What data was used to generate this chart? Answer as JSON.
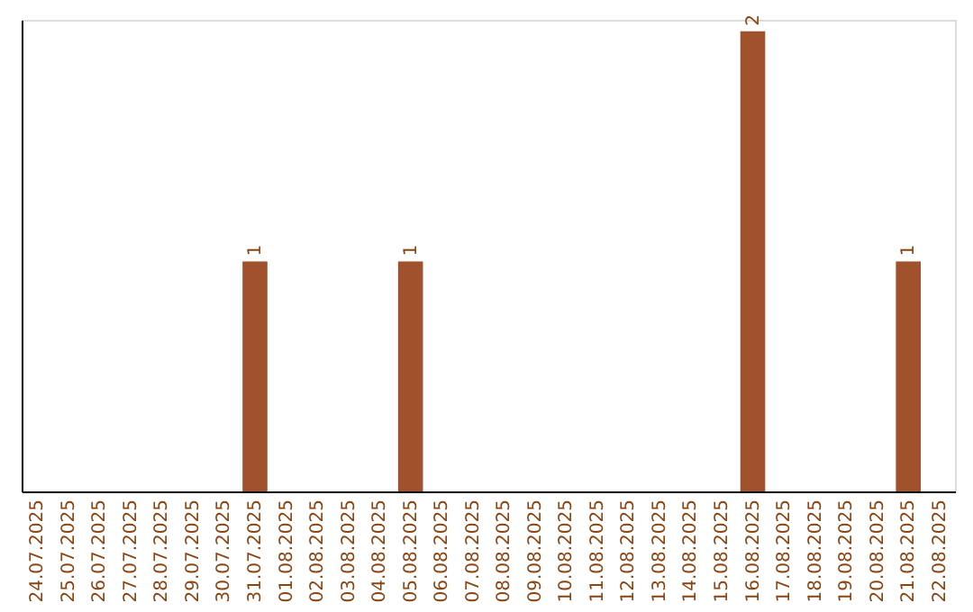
{
  "chart_data": {
    "type": "bar",
    "categories": [
      "24.07.2025",
      "25.07.2025",
      "26.07.2025",
      "27.07.2025",
      "28.07.2025",
      "29.07.2025",
      "30.07.2025",
      "31.07.2025",
      "01.08.2025",
      "02.08.2025",
      "03.08.2025",
      "04.08.2025",
      "05.08.2025",
      "06.08.2025",
      "07.08.2025",
      "08.08.2025",
      "09.08.2025",
      "10.08.2025",
      "11.08.2025",
      "12.08.2025",
      "13.08.2025",
      "14.08.2025",
      "15.08.2025",
      "16.08.2025",
      "17.08.2025",
      "18.08.2025",
      "19.08.2025",
      "20.08.2025",
      "21.08.2025",
      "22.08.2025"
    ],
    "values": [
      0,
      0,
      0,
      0,
      0,
      0,
      0,
      1,
      0,
      0,
      0,
      0,
      1,
      0,
      0,
      0,
      0,
      0,
      0,
      0,
      0,
      0,
      0,
      2,
      0,
      0,
      0,
      0,
      1,
      0
    ],
    "value_labels": [
      null,
      null,
      null,
      null,
      null,
      null,
      null,
      "1",
      null,
      null,
      null,
      null,
      "1",
      null,
      null,
      null,
      null,
      null,
      null,
      null,
      null,
      null,
      null,
      "2",
      null,
      null,
      null,
      null,
      "1",
      null
    ],
    "color": "#a0522d",
    "ylim": [
      0,
      2.05
    ],
    "grid": false,
    "tick_labels": "x"
  }
}
